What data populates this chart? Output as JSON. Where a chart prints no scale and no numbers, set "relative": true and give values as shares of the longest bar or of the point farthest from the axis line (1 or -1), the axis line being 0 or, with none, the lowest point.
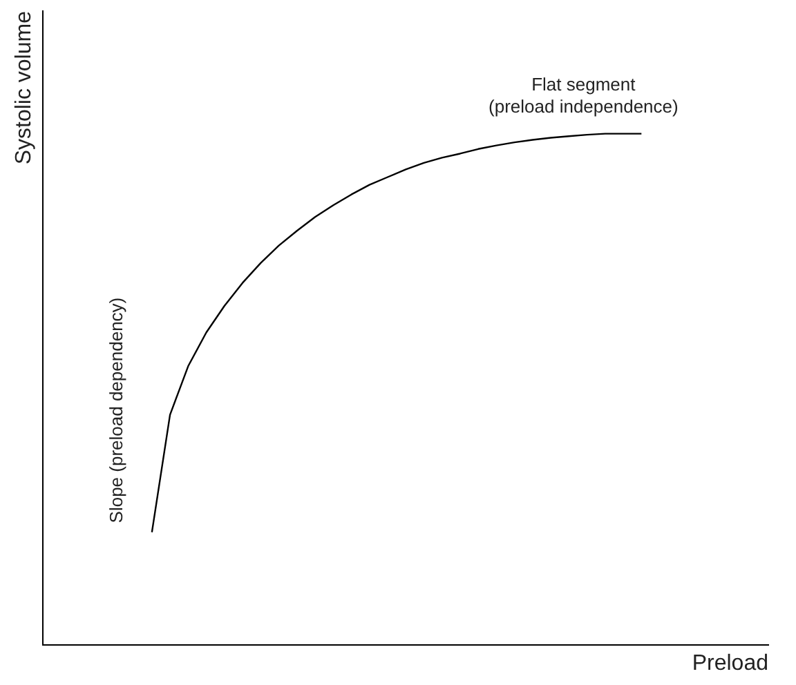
{
  "chart_data": {
    "type": "line",
    "relative": true,
    "xlabel": "Preload",
    "ylabel": "Systolic volume",
    "marker": "none",
    "grid": false,
    "legend": false,
    "categories": [
      null,
      null,
      null,
      null,
      null,
      null,
      null,
      null,
      null,
      null,
      null,
      null,
      null,
      null,
      null,
      null,
      null,
      null,
      null,
      null,
      null,
      null,
      null,
      null,
      null,
      null,
      null,
      null,
      null,
      null,
      null,
      null,
      null,
      null,
      null,
      null,
      null,
      null,
      null,
      null,
      null
    ],
    "series": [
      {
        "color": "#000000",
        "values": [
          null,
          null,
          null,
          null,
          null,
          null,
          0.22,
          0.45,
          0.545,
          0.611,
          0.663,
          0.708,
          0.747,
          0.781,
          0.81,
          0.837,
          0.86,
          0.881,
          0.9,
          0.915,
          0.93,
          0.943,
          0.953,
          0.961,
          0.97,
          0.977,
          0.983,
          0.988,
          0.992,
          0.995,
          0.998,
          1,
          1,
          1,
          null,
          null,
          null,
          null,
          null,
          null,
          null
        ]
      }
    ],
    "annotations": [
      "Flat segment\n(preload independence)",
      "Slope (preload dependency)"
    ]
  }
}
